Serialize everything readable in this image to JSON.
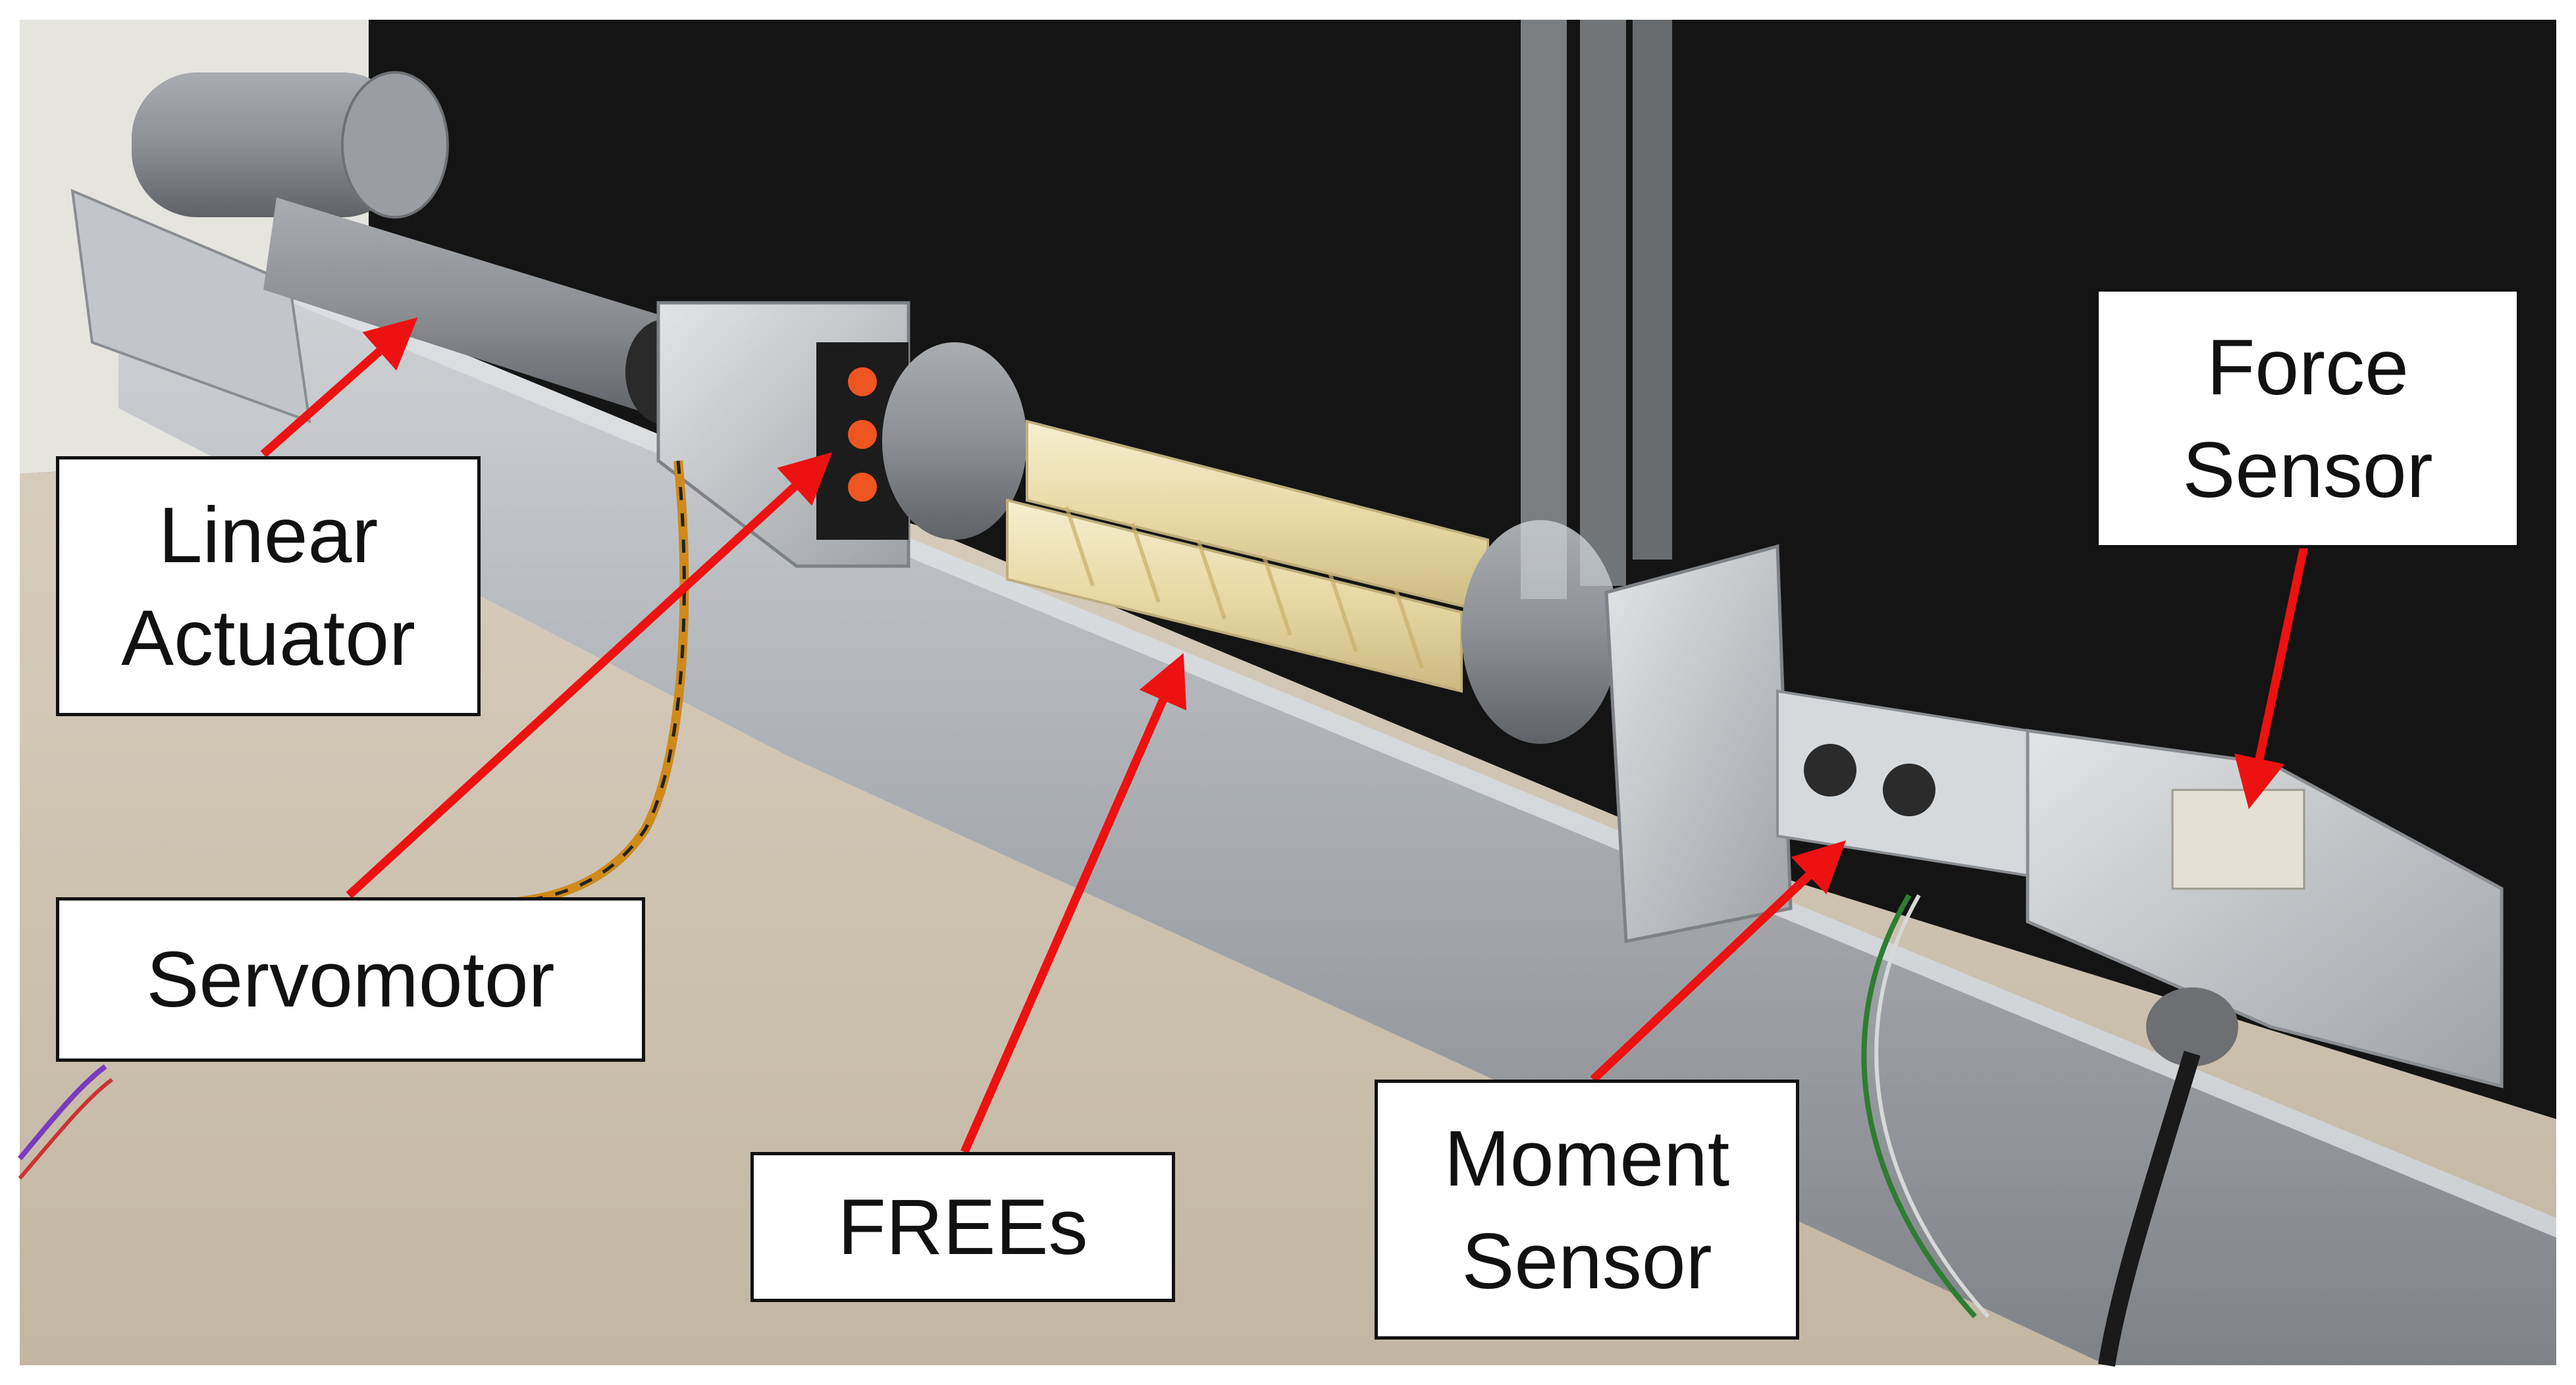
{
  "labels": {
    "linear_actuator": [
      "Linear",
      "Actuator"
    ],
    "servomotor": [
      "Servomotor"
    ],
    "frees": [
      "FREEs"
    ],
    "moment_sensor": [
      "Moment",
      "Sensor"
    ],
    "force_sensor": [
      "Force",
      "Sensor"
    ]
  },
  "colors": {
    "arrow": "#ee1111",
    "box_border": "#111111",
    "box_fill": "#ffffff",
    "floor": "#cbbfae",
    "backdrop": "#161616",
    "aluminum": "#b9bcc0",
    "frees_tube": "#efe3b8",
    "pvc_gray": "#6e7073"
  },
  "icons": {
    "arrow_head": "triangle-arrowhead"
  }
}
